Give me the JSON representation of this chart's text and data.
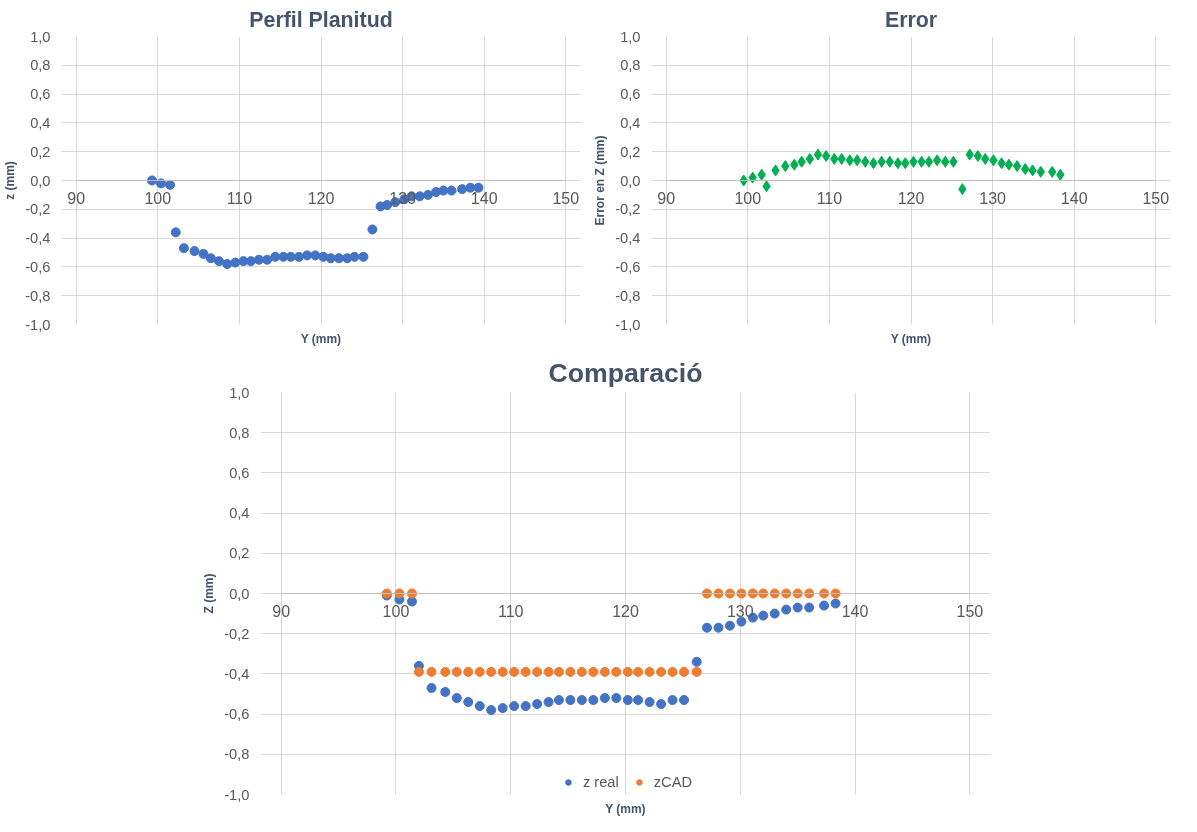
{
  "chart_data": [
    {
      "type": "scatter",
      "title": "Perfil Planitud",
      "xlabel": "Y (mm)",
      "ylabel": "z (mm)",
      "marker": "circle",
      "grid": true,
      "legend": false,
      "xlim": [
        90,
        150
      ],
      "xticks": [
        90,
        100,
        110,
        120,
        130,
        140,
        150
      ],
      "ylim": [
        -1.0,
        1.0
      ],
      "yticks": [
        {
          "value": -1.0,
          "label": "-1,0"
        },
        {
          "value": -0.8,
          "label": "-0,8"
        },
        {
          "value": -0.6,
          "label": "-0,6"
        },
        {
          "value": -0.4,
          "label": "-0,4"
        },
        {
          "value": -0.2,
          "label": "-0,2"
        },
        {
          "value": 0.0,
          "label": "0,0"
        },
        {
          "value": 0.2,
          "label": "0,2"
        },
        {
          "value": 0.4,
          "label": "0,4"
        },
        {
          "value": 0.6,
          "label": "0,6"
        },
        {
          "value": 0.8,
          "label": "0,8"
        },
        {
          "value": 1.0,
          "label": "1,0"
        }
      ],
      "series": [
        {
          "color": "#4472c4",
          "x": [
            99.3,
            100.4,
            101.5,
            102.2,
            103.2,
            104.5,
            105.6,
            106.5,
            107.5,
            108.5,
            109.5,
            110.5,
            111.4,
            112.4,
            113.4,
            114.4,
            115.4,
            116.3,
            117.3,
            118.3,
            119.3,
            120.3,
            121.2,
            122.2,
            123.2,
            124.1,
            125.2,
            126.3,
            127.3,
            128.1,
            129.1,
            130.2,
            131.1,
            132.1,
            133.1,
            134.1,
            135.0,
            136.0,
            137.3,
            138.3,
            139.3
          ],
          "values": [
            0.0,
            -0.02,
            -0.03,
            -0.36,
            -0.47,
            -0.49,
            -0.51,
            -0.54,
            -0.56,
            -0.58,
            -0.57,
            -0.56,
            -0.56,
            -0.55,
            -0.55,
            -0.53,
            -0.53,
            -0.53,
            -0.53,
            -0.52,
            -0.52,
            -0.53,
            -0.54,
            -0.54,
            -0.54,
            -0.53,
            -0.53,
            -0.34,
            -0.18,
            -0.17,
            -0.15,
            -0.13,
            -0.11,
            -0.11,
            -0.1,
            -0.08,
            -0.07,
            -0.07,
            -0.06,
            -0.05,
            -0.05
          ]
        }
      ]
    },
    {
      "type": "scatter",
      "title": "Error",
      "xlabel": "Y (mm)",
      "ylabel": "Error en Z (mm)",
      "marker": "diamond",
      "grid": true,
      "legend": false,
      "xlim": [
        90,
        150
      ],
      "xticks": [
        90,
        100,
        110,
        120,
        130,
        140,
        150
      ],
      "ylim": [
        -1.0,
        1.0
      ],
      "yticks": [
        {
          "value": -1.0,
          "label": "-1,0"
        },
        {
          "value": -0.8,
          "label": "-0,8"
        },
        {
          "value": -0.6,
          "label": "-0,6"
        },
        {
          "value": -0.4,
          "label": "-0,4"
        },
        {
          "value": -0.2,
          "label": "-0,2"
        },
        {
          "value": 0.0,
          "label": "0,0"
        },
        {
          "value": 0.2,
          "label": "0,2"
        },
        {
          "value": 0.4,
          "label": "0,4"
        },
        {
          "value": 0.6,
          "label": "0,6"
        },
        {
          "value": 0.8,
          "label": "0,8"
        },
        {
          "value": 1.0,
          "label": "1,0"
        }
      ],
      "series": [
        {
          "color": "#00b050",
          "x": [
            99.5,
            100.6,
            101.7,
            102.3,
            103.4,
            104.6,
            105.7,
            106.6,
            107.6,
            108.6,
            109.6,
            110.6,
            111.5,
            112.5,
            113.4,
            114.4,
            115.4,
            116.4,
            117.4,
            118.4,
            119.3,
            120.3,
            121.3,
            122.2,
            123.2,
            124.2,
            125.2,
            126.3,
            127.2,
            128.2,
            129.1,
            130.1,
            131.1,
            132.0,
            133.0,
            134.0,
            134.9,
            135.9,
            137.3,
            138.3
          ],
          "values": [
            0.0,
            0.02,
            0.04,
            -0.04,
            0.07,
            0.1,
            0.11,
            0.13,
            0.15,
            0.18,
            0.17,
            0.15,
            0.15,
            0.14,
            0.14,
            0.13,
            0.12,
            0.13,
            0.13,
            0.12,
            0.12,
            0.13,
            0.13,
            0.13,
            0.14,
            0.13,
            0.13,
            -0.06,
            0.18,
            0.17,
            0.15,
            0.14,
            0.12,
            0.11,
            0.1,
            0.08,
            0.07,
            0.06,
            0.06,
            0.04
          ]
        }
      ]
    },
    {
      "type": "scatter",
      "title": "Comparació",
      "xlabel": "Y (mm)",
      "ylabel": "Z (mm)",
      "marker": "circle",
      "grid": true,
      "legend": "bottom",
      "xlim": [
        90,
        150
      ],
      "xticks": [
        90,
        100,
        110,
        120,
        130,
        140,
        150
      ],
      "ylim": [
        -1.0,
        1.0
      ],
      "yticks": [
        {
          "value": -1.0,
          "label": "-1,0"
        },
        {
          "value": -0.8,
          "label": "-0,8"
        },
        {
          "value": -0.6,
          "label": "-0,6"
        },
        {
          "value": -0.4,
          "label": "-0,4"
        },
        {
          "value": -0.2,
          "label": "-0,2"
        },
        {
          "value": 0.0,
          "label": "0,0"
        },
        {
          "value": 0.2,
          "label": "0,2"
        },
        {
          "value": 0.4,
          "label": "0,4"
        },
        {
          "value": 0.6,
          "label": "0,6"
        },
        {
          "value": 0.8,
          "label": "0,8"
        },
        {
          "value": 1.0,
          "label": "1,0"
        }
      ],
      "x": [
        99.2,
        100.3,
        101.4,
        102.0,
        103.1,
        104.3,
        105.3,
        106.3,
        107.3,
        108.3,
        109.3,
        110.3,
        111.3,
        112.3,
        113.3,
        114.2,
        115.2,
        116.2,
        117.2,
        118.2,
        119.2,
        120.2,
        121.1,
        122.1,
        123.1,
        124.1,
        125.1,
        126.2,
        127.1,
        128.1,
        129.1,
        130.1,
        131.1,
        132.0,
        133.0,
        134.0,
        135.0,
        136.0,
        137.3,
        138.3
      ],
      "series": [
        {
          "name": "z real",
          "color": "#4472c4",
          "values": [
            -0.01,
            -0.03,
            -0.04,
            -0.36,
            -0.47,
            -0.49,
            -0.52,
            -0.54,
            -0.56,
            -0.58,
            -0.57,
            -0.56,
            -0.56,
            -0.55,
            -0.54,
            -0.53,
            -0.53,
            -0.53,
            -0.53,
            -0.52,
            -0.52,
            -0.53,
            -0.53,
            -0.54,
            -0.55,
            -0.53,
            -0.53,
            -0.34,
            -0.17,
            -0.17,
            -0.16,
            -0.14,
            -0.12,
            -0.11,
            -0.1,
            -0.08,
            -0.07,
            -0.07,
            -0.06,
            -0.05
          ]
        },
        {
          "name": "zCAD",
          "color": "#ed7d31",
          "values": [
            0.0,
            0.0,
            0.0,
            -0.39,
            -0.39,
            -0.39,
            -0.39,
            -0.39,
            -0.39,
            -0.39,
            -0.39,
            -0.39,
            -0.39,
            -0.39,
            -0.39,
            -0.39,
            -0.39,
            -0.39,
            -0.39,
            -0.39,
            -0.39,
            -0.39,
            -0.39,
            -0.39,
            -0.39,
            -0.39,
            -0.39,
            -0.39,
            0.0,
            0.0,
            0.0,
            0.0,
            0.0,
            0.0,
            0.0,
            0.0,
            0.0,
            0.0,
            0.0,
            0.0
          ]
        }
      ]
    }
  ]
}
